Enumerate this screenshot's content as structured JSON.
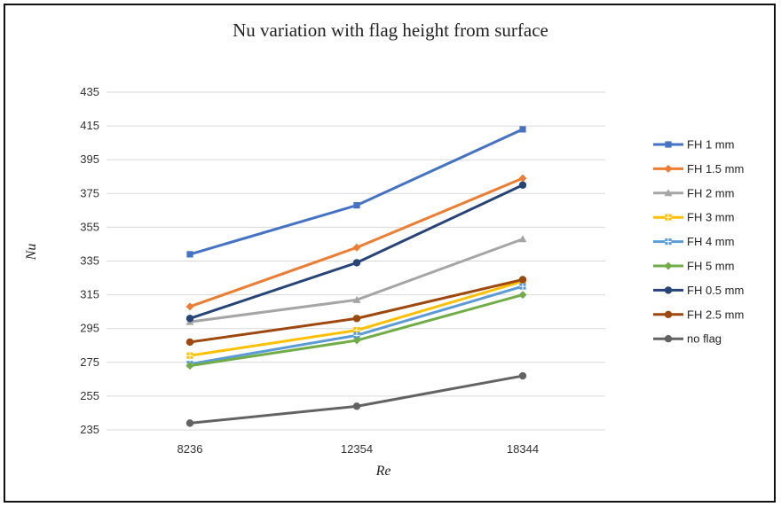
{
  "chart_data": {
    "type": "line",
    "title": "Nu variation with flag height from surface",
    "xlabel": "Re",
    "ylabel": "Nu",
    "categories": [
      "8236",
      "12354",
      "18344"
    ],
    "yticks": [
      235,
      255,
      275,
      295,
      315,
      335,
      355,
      375,
      395,
      415,
      435
    ],
    "ylim": [
      235,
      435
    ],
    "grid": true,
    "legend_position": "right",
    "series": [
      {
        "name": "FH 1 mm",
        "values": [
          339,
          368,
          413
        ],
        "color": "#4472C4",
        "marker": "square"
      },
      {
        "name": "FH 1.5 mm",
        "values": [
          308,
          343,
          384
        ],
        "color": "#ED7D31",
        "marker": "diamond"
      },
      {
        "name": "FH 2 mm",
        "values": [
          299,
          312,
          348
        ],
        "color": "#A5A5A5",
        "marker": "triangle"
      },
      {
        "name": "FH 3 mm",
        "values": [
          279,
          294,
          323
        ],
        "color": "#FFC000",
        "marker": "square-cross"
      },
      {
        "name": "FH 4 mm",
        "values": [
          274,
          291,
          320
        ],
        "color": "#5B9BD5",
        "marker": "square-cross"
      },
      {
        "name": "FH 5 mm",
        "values": [
          273,
          288,
          315
        ],
        "color": "#70AD47",
        "marker": "diamond"
      },
      {
        "name": "FH 0.5 mm",
        "values": [
          301,
          334,
          380
        ],
        "color": "#264478",
        "marker": "circle"
      },
      {
        "name": "FH 2.5 mm",
        "values": [
          287,
          301,
          324
        ],
        "color": "#9E480E",
        "marker": "circle"
      },
      {
        "name": "no flag",
        "values": [
          239,
          249,
          267
        ],
        "color": "#636363",
        "marker": "circle"
      }
    ]
  }
}
